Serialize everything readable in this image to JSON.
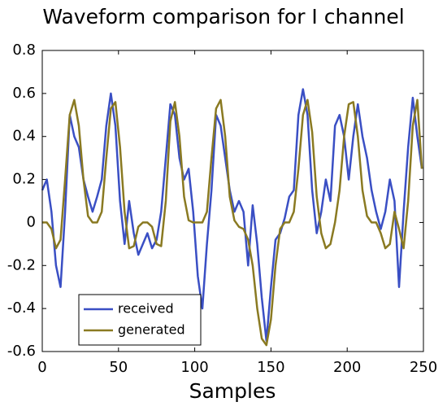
{
  "chart_data": {
    "type": "line",
    "title": "Waveform comparison for I channel",
    "x_label": "Samples",
    "x": [
      0,
      3,
      6,
      9,
      12,
      15,
      18,
      21,
      24,
      27,
      30,
      33,
      36,
      39,
      42,
      45,
      48,
      51,
      54,
      57,
      60,
      63,
      66,
      69,
      72,
      75,
      78,
      81,
      84,
      87,
      90,
      93,
      96,
      99,
      102,
      105,
      108,
      111,
      114,
      117,
      120,
      123,
      126,
      129,
      132,
      135,
      138,
      141,
      144,
      147,
      150,
      153,
      156,
      159,
      162,
      165,
      168,
      171,
      174,
      177,
      180,
      183,
      186,
      189,
      192,
      195,
      198,
      201,
      204,
      207,
      210,
      213,
      216,
      219,
      222,
      225,
      228,
      231,
      234,
      237,
      240,
      243,
      246,
      249
    ],
    "series": [
      {
        "name": "received",
        "color": "#3a4fc4",
        "values": [
          0.15,
          0.2,
          0.05,
          -0.2,
          -0.3,
          0.05,
          0.5,
          0.4,
          0.35,
          0.2,
          0.12,
          0.05,
          0.12,
          0.2,
          0.45,
          0.6,
          0.45,
          0.1,
          -0.1,
          0.1,
          -0.05,
          -0.15,
          -0.1,
          -0.05,
          -0.12,
          -0.08,
          0.05,
          0.3,
          0.55,
          0.5,
          0.3,
          0.2,
          0.25,
          0.05,
          -0.25,
          -0.4,
          -0.1,
          0.15,
          0.5,
          0.45,
          0.3,
          0.15,
          0.05,
          0.1,
          0.05,
          -0.2,
          0.08,
          -0.1,
          -0.35,
          -0.55,
          -0.3,
          -0.08,
          -0.05,
          0.02,
          0.12,
          0.15,
          0.5,
          0.62,
          0.5,
          0.15,
          -0.05,
          0.05,
          0.2,
          0.1,
          0.45,
          0.5,
          0.4,
          0.2,
          0.4,
          0.55,
          0.4,
          0.3,
          0.15,
          0.05,
          -0.03,
          0.05,
          0.2,
          0.1,
          -0.3,
          0.05,
          0.35,
          0.58,
          0.4,
          0.25
        ]
      },
      {
        "name": "generated",
        "color": "#8a7a22",
        "values": [
          0,
          0,
          -0.03,
          -0.12,
          -0.08,
          0.2,
          0.5,
          0.57,
          0.45,
          0.2,
          0.03,
          0,
          0,
          0.05,
          0.3,
          0.53,
          0.56,
          0.35,
          0.05,
          -0.12,
          -0.11,
          -0.02,
          0,
          0,
          -0.02,
          -0.1,
          -0.11,
          0.1,
          0.47,
          0.56,
          0.4,
          0.12,
          0.01,
          0,
          0,
          0,
          0.05,
          0.3,
          0.53,
          0.57,
          0.4,
          0.12,
          0.01,
          -0.02,
          -0.03,
          -0.08,
          -0.2,
          -0.4,
          -0.54,
          -0.57,
          -0.45,
          -0.2,
          -0.03,
          0,
          0,
          0.05,
          0.25,
          0.5,
          0.57,
          0.42,
          0.12,
          -0.05,
          -0.12,
          -0.1,
          0,
          0.15,
          0.4,
          0.55,
          0.56,
          0.4,
          0.15,
          0.03,
          0,
          0,
          -0.05,
          -0.12,
          -0.1,
          0.05,
          -0.03,
          -0.12,
          0.1,
          0.45,
          0.57,
          0.25
        ]
      }
    ],
    "xlim": [
      0,
      250
    ],
    "xticks": [
      0,
      50,
      100,
      150,
      200,
      250
    ],
    "ylim": [
      -0.6,
      0.8
    ],
    "yticks": [
      -0.6,
      -0.4,
      -0.2,
      0,
      0.2,
      0.4,
      0.6,
      0.8
    ],
    "grid": false,
    "legend": "lower left"
  }
}
